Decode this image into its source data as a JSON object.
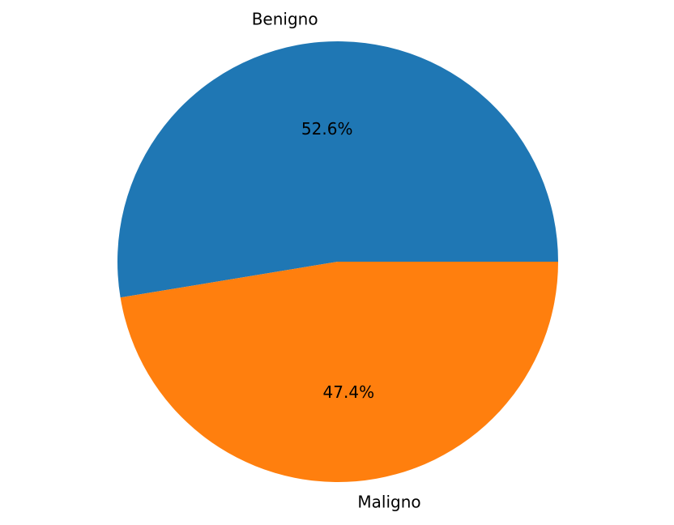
{
  "chart_data": {
    "type": "pie",
    "categories": [
      "Benigno",
      "Maligno"
    ],
    "values": [
      52.6,
      47.4
    ],
    "value_labels": [
      "52.6%",
      "47.4%"
    ],
    "colors": [
      "#1f77b4",
      "#ff7f0e"
    ],
    "start_angle_deg": 0,
    "direction": "counterclockwise",
    "legend": "none"
  }
}
